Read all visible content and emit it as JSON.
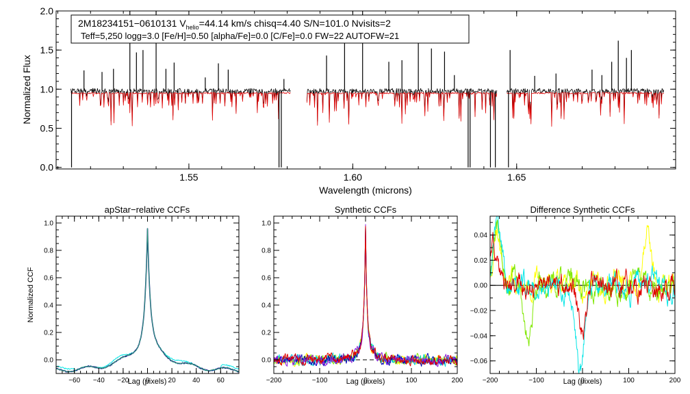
{
  "colors": {
    "observed": "#000000",
    "model": "#e00000",
    "ccf_series": [
      "#00e5e5",
      "#1a1a8c",
      "#33a07a"
    ],
    "synth_series": [
      "#ffff00",
      "#7fe800",
      "#00d4d4",
      "#0000b4",
      "#8a1ae0",
      "#e00000"
    ],
    "diff_series": [
      "#ffff00",
      "#7fe800",
      "#00e5e5",
      "#e00000"
    ]
  },
  "chart_data": [
    {
      "type": "line",
      "id": "spectrum",
      "title": "",
      "header_line1": {
        "id": "2M18234151−0610131",
        "v_label": "V",
        "v_sub": "helio",
        "v_value": "=44.14 km/s",
        "chisq": "chisq=4.40",
        "snr": "S/N=101.0",
        "nvisits": "Nvisits=2"
      },
      "header_line2": "Teff=5,250 logg=3.0 [Fe/H]=0.50 [alpha/Fe]=0.0 [C/Fe]=0.0 FW=22 AUTOFW=21",
      "xlabel": "Wavelength (microns)",
      "ylabel": "Normalized Flux",
      "xlim": [
        1.5095,
        1.6985
      ],
      "ylim": [
        -0.02,
        2.0
      ],
      "xticks": [
        1.55,
        1.6,
        1.65
      ],
      "xticklabels": [
        "1.55",
        "1.60",
        "1.65"
      ],
      "yticks": [
        0.0,
        0.5,
        1.0,
        1.5,
        2.0
      ],
      "yticklabels": [
        "0.0",
        "0.5",
        "1.0",
        "1.5",
        "2.0"
      ],
      "chips": [
        [
          1.514,
          1.581
        ],
        [
          1.586,
          1.644
        ],
        [
          1.647,
          1.695
        ]
      ],
      "continuum_observed": 0.98,
      "continuum_model": 0.95,
      "series": [
        {
          "name": "observed",
          "color_key": "observed"
        },
        {
          "name": "model",
          "color_key": "model"
        }
      ],
      "spikes": [
        {
          "x": 1.5142,
          "y": 0.0
        },
        {
          "x": 1.518,
          "y": 1.24
        },
        {
          "x": 1.5235,
          "y": 1.22
        },
        {
          "x": 1.527,
          "y": 1.26
        },
        {
          "x": 1.532,
          "y": 2.0
        },
        {
          "x": 1.534,
          "y": 1.47
        },
        {
          "x": 1.536,
          "y": 1.5
        },
        {
          "x": 1.54,
          "y": 2.0
        },
        {
          "x": 1.543,
          "y": 1.26
        },
        {
          "x": 1.5455,
          "y": 1.34
        },
        {
          "x": 1.555,
          "y": 1.15
        },
        {
          "x": 1.559,
          "y": 1.33
        },
        {
          "x": 1.562,
          "y": 1.25
        },
        {
          "x": 1.5775,
          "y": 0.0
        },
        {
          "x": 1.5782,
          "y": 0.0
        },
        {
          "x": 1.579,
          "y": 1.13
        },
        {
          "x": 1.592,
          "y": 1.43
        },
        {
          "x": 1.5975,
          "y": 1.6
        },
        {
          "x": 1.603,
          "y": 2.0
        },
        {
          "x": 1.611,
          "y": 1.35
        },
        {
          "x": 1.615,
          "y": 1.37
        },
        {
          "x": 1.62,
          "y": 1.84
        },
        {
          "x": 1.624,
          "y": 1.52
        },
        {
          "x": 1.628,
          "y": 1.48
        },
        {
          "x": 1.631,
          "y": 1.18
        },
        {
          "x": 1.6352,
          "y": 0.0
        },
        {
          "x": 1.6358,
          "y": 0.0
        },
        {
          "x": 1.642,
          "y": 0.0
        },
        {
          "x": 1.6435,
          "y": 0.0
        },
        {
          "x": 1.6475,
          "y": 0.0
        },
        {
          "x": 1.648,
          "y": 1.5
        },
        {
          "x": 1.6555,
          "y": 1.17
        },
        {
          "x": 1.662,
          "y": 1.2
        },
        {
          "x": 1.673,
          "y": 1.25
        },
        {
          "x": 1.676,
          "y": 1.18
        },
        {
          "x": 1.679,
          "y": 1.35
        },
        {
          "x": 1.681,
          "y": 1.62
        },
        {
          "x": 1.6835,
          "y": 1.4
        },
        {
          "x": 1.685,
          "y": 1.5
        }
      ]
    },
    {
      "type": "line",
      "id": "apstar_ccf",
      "title": "apStar−relative CCFs",
      "xlabel": "Lag (pixels)",
      "ylabel": "Normalized CCF",
      "xlim": [
        -75,
        75
      ],
      "ylim": [
        -0.1,
        1.05
      ],
      "xticks": [
        -60,
        -40,
        -20,
        0,
        20,
        40,
        60
      ],
      "xticklabels": [
        "−60",
        "−40",
        "−20",
        "0",
        "20",
        "40",
        "60"
      ],
      "yticks": [
        0.0,
        0.2,
        0.4,
        0.6,
        0.8,
        1.0
      ],
      "yticklabels": [
        "0.0",
        "0.2",
        "0.4",
        "0.6",
        "0.8",
        "1.0"
      ],
      "peak": {
        "x": 0,
        "y": 1.0
      },
      "wing_level_at_lag_20": 0.14,
      "baseline_at_lag_70": -0.08,
      "series": [
        {
          "name": "ccf-1",
          "color_index": 0
        },
        {
          "name": "ccf-2",
          "color_index": 1
        },
        {
          "name": "ccf-3",
          "color_index": 2
        }
      ]
    },
    {
      "type": "line",
      "id": "synthetic_ccf",
      "title": "Synthetic CCFs",
      "xlabel": "Lag (pixels)",
      "ylabel": "",
      "xlim": [
        -200,
        200
      ],
      "ylim": [
        -0.1,
        1.05
      ],
      "xticks": [
        -200,
        -100,
        0,
        100,
        200
      ],
      "xticklabels": [
        "−200",
        "−100",
        "0",
        "100",
        "200"
      ],
      "yticks": [
        0.0,
        0.2,
        0.4,
        0.6,
        0.8,
        1.0
      ],
      "yticklabels": [
        "0.0",
        "0.2",
        "0.4",
        "0.6",
        "0.8",
        "1.0"
      ],
      "reference_line": {
        "y": 0.0,
        "style": "dashed"
      },
      "peak": {
        "x": 0,
        "y": 1.0
      },
      "series": [
        {
          "name": "synthetic-1",
          "color_index": 0
        },
        {
          "name": "synthetic-2",
          "color_index": 1
        },
        {
          "name": "synthetic-3",
          "color_index": 2
        },
        {
          "name": "synthetic-4",
          "color_index": 3
        },
        {
          "name": "synthetic-5",
          "color_index": 4
        },
        {
          "name": "synthetic-6",
          "color_index": 5
        }
      ]
    },
    {
      "type": "line",
      "id": "difference_ccf",
      "title": "Difference Synthetic CCFs",
      "xlabel": "Lag (pixels)",
      "ylabel": "",
      "xlim": [
        -200,
        200
      ],
      "ylim": [
        -0.07,
        0.055
      ],
      "xticks": [
        -200,
        -100,
        0,
        100,
        200
      ],
      "xticklabels": [
        "−200",
        "−100",
        "0",
        "100",
        "200"
      ],
      "yticks": [
        -0.06,
        -0.04,
        -0.02,
        0.0,
        0.02,
        0.04
      ],
      "yticklabels": [
        "−0.06",
        "−0.04",
        "−0.02",
        "0.00",
        "0.02",
        "0.04"
      ],
      "reference_line": {
        "y": 0.0,
        "style": "solid"
      },
      "series": [
        {
          "name": "diff-yellow",
          "color_index": 0,
          "extremes": [
            [
              -185,
              0.04
            ],
            [
              140,
              0.045
            ]
          ]
        },
        {
          "name": "diff-green",
          "color_index": 1,
          "extremes": [
            [
              -185,
              0.05
            ],
            [
              -120,
              -0.043
            ]
          ]
        },
        {
          "name": "diff-cyan",
          "color_index": 2,
          "extremes": [
            [
              -185,
              0.052
            ],
            [
              -5,
              -0.066
            ]
          ]
        },
        {
          "name": "diff-red",
          "color_index": 3,
          "extremes": [
            [
              -195,
              0.033
            ],
            [
              0,
              -0.04
            ]
          ]
        }
      ]
    }
  ]
}
